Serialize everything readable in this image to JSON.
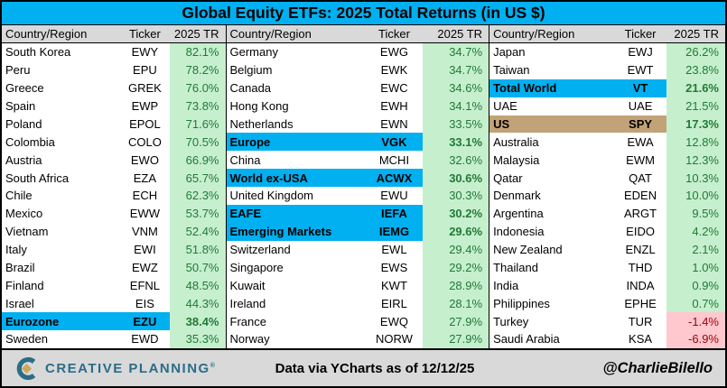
{
  "title": "Global Equity ETFs: 2025 Total Returns (in US $)",
  "column_headers": {
    "country": "Country/Region",
    "ticker": "Ticker",
    "tr": "2025 TR"
  },
  "chart_data": {
    "type": "table",
    "title": "Global Equity ETFs: 2025 Total Returns (in US $)",
    "columns": [
      "Country/Region",
      "Ticker",
      "2025 TR"
    ],
    "groups": [
      {
        "rows": [
          {
            "country": "South Korea",
            "ticker": "EWY",
            "tr": "82.1%"
          },
          {
            "country": "Peru",
            "ticker": "EPU",
            "tr": "78.2%"
          },
          {
            "country": "Greece",
            "ticker": "GREK",
            "tr": "76.0%"
          },
          {
            "country": "Spain",
            "ticker": "EWP",
            "tr": "73.8%"
          },
          {
            "country": "Poland",
            "ticker": "EPOL",
            "tr": "71.6%"
          },
          {
            "country": "Colombia",
            "ticker": "COLO",
            "tr": "70.5%"
          },
          {
            "country": "Austria",
            "ticker": "EWO",
            "tr": "66.9%"
          },
          {
            "country": "South Africa",
            "ticker": "EZA",
            "tr": "65.7%"
          },
          {
            "country": "Chile",
            "ticker": "ECH",
            "tr": "62.3%"
          },
          {
            "country": "Mexico",
            "ticker": "EWW",
            "tr": "53.7%"
          },
          {
            "country": "Vietnam",
            "ticker": "VNM",
            "tr": "52.4%"
          },
          {
            "country": "Italy",
            "ticker": "EWI",
            "tr": "51.8%"
          },
          {
            "country": "Brazil",
            "ticker": "EWZ",
            "tr": "50.7%"
          },
          {
            "country": "Finland",
            "ticker": "EFNL",
            "tr": "48.5%"
          },
          {
            "country": "Israel",
            "ticker": "EIS",
            "tr": "44.3%"
          },
          {
            "country": "Eurozone",
            "ticker": "EZU",
            "tr": "38.4%",
            "highlight": "cyan"
          },
          {
            "country": "Sweden",
            "ticker": "EWD",
            "tr": "35.3%"
          }
        ]
      },
      {
        "rows": [
          {
            "country": "Germany",
            "ticker": "EWG",
            "tr": "34.7%"
          },
          {
            "country": "Belgium",
            "ticker": "EWK",
            "tr": "34.7%"
          },
          {
            "country": "Canada",
            "ticker": "EWC",
            "tr": "34.6%"
          },
          {
            "country": "Hong Kong",
            "ticker": "EWH",
            "tr": "34.1%"
          },
          {
            "country": "Netherlands",
            "ticker": "EWN",
            "tr": "33.5%"
          },
          {
            "country": "Europe",
            "ticker": "VGK",
            "tr": "33.1%",
            "highlight": "cyan"
          },
          {
            "country": "China",
            "ticker": "MCHI",
            "tr": "32.6%"
          },
          {
            "country": "World ex-USA",
            "ticker": "ACWX",
            "tr": "30.6%",
            "highlight": "cyan"
          },
          {
            "country": "United Kingdom",
            "ticker": "EWU",
            "tr": "30.3%"
          },
          {
            "country": "EAFE",
            "ticker": "IEFA",
            "tr": "30.2%",
            "highlight": "cyan"
          },
          {
            "country": "Emerging Markets",
            "ticker": "IEMG",
            "tr": "29.6%",
            "highlight": "cyan"
          },
          {
            "country": "Switzerland",
            "ticker": "EWL",
            "tr": "29.4%"
          },
          {
            "country": "Singapore",
            "ticker": "EWS",
            "tr": "29.2%"
          },
          {
            "country": "Kuwait",
            "ticker": "KWT",
            "tr": "28.9%"
          },
          {
            "country": "Ireland",
            "ticker": "EIRL",
            "tr": "28.1%"
          },
          {
            "country": "France",
            "ticker": "EWQ",
            "tr": "27.9%"
          },
          {
            "country": "Norway",
            "ticker": "NORW",
            "tr": "27.9%"
          }
        ]
      },
      {
        "rows": [
          {
            "country": "Japan",
            "ticker": "EWJ",
            "tr": "26.2%"
          },
          {
            "country": "Taiwan",
            "ticker": "EWT",
            "tr": "23.8%"
          },
          {
            "country": "Total World",
            "ticker": "VT",
            "tr": "21.6%",
            "highlight": "cyan"
          },
          {
            "country": "UAE",
            "ticker": "UAE",
            "tr": "21.5%"
          },
          {
            "country": "US",
            "ticker": "SPY",
            "tr": "17.3%",
            "highlight": "tan"
          },
          {
            "country": "Australia",
            "ticker": "EWA",
            "tr": "12.8%"
          },
          {
            "country": "Malaysia",
            "ticker": "EWM",
            "tr": "12.3%"
          },
          {
            "country": "Qatar",
            "ticker": "QAT",
            "tr": "10.3%"
          },
          {
            "country": "Denmark",
            "ticker": "EDEN",
            "tr": "10.0%"
          },
          {
            "country": "Argentina",
            "ticker": "ARGT",
            "tr": "9.5%"
          },
          {
            "country": "Indonesia",
            "ticker": "EIDO",
            "tr": "4.2%"
          },
          {
            "country": "New Zealand",
            "ticker": "ENZL",
            "tr": "2.1%"
          },
          {
            "country": "Thailand",
            "ticker": "THD",
            "tr": "1.0%"
          },
          {
            "country": "India",
            "ticker": "INDA",
            "tr": "0.9%"
          },
          {
            "country": "Philippines",
            "ticker": "EPHE",
            "tr": "0.7%"
          },
          {
            "country": "Turkey",
            "ticker": "TUR",
            "tr": "-1.4%"
          },
          {
            "country": "Saudi Arabia",
            "ticker": "KSA",
            "tr": "-6.9%"
          }
        ]
      }
    ]
  },
  "footer": {
    "brand": "CREATIVE PLANNING",
    "brand_mark": "®",
    "center": "Data via YCharts as of 12/12/25",
    "handle": "@CharlieBilello"
  },
  "colors": {
    "title_bg": "#00B0F0",
    "highlight_cyan": "#00B0F0",
    "highlight_tan": "#C2A377",
    "positive_bg": "#C6EFCE",
    "positive_text": "#217A36",
    "negative_bg": "#FFC7CE",
    "negative_text": "#9C0006",
    "header_bg": "#D9D9D9",
    "footer_bg": "#D9D9D9",
    "brand_teal": "#2A6D87",
    "brand_gold": "#C9A962"
  }
}
